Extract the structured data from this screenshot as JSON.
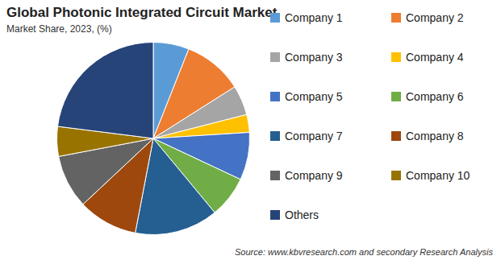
{
  "chart_data": {
    "type": "pie",
    "title": "Global Photonic Integrated Circuit Market",
    "subtitle": "Market Share, 2023, (%)",
    "source": "Source: www.kbvresearch.com and secondary Research Analysis",
    "categories": [
      "Company 1",
      "Company 2",
      "Company 3",
      "Company 4",
      "Company 5",
      "Company 6",
      "Company 7",
      "Company 8",
      "Company 9",
      "Company 10",
      "Others"
    ],
    "values": [
      6,
      10,
      5,
      3,
      8,
      7,
      14,
      10,
      9,
      5,
      23
    ],
    "colors": [
      "#5b9bd5",
      "#ed7d31",
      "#a5a5a5",
      "#ffc000",
      "#4472c4",
      "#70ad47",
      "#255e91",
      "#9e480e",
      "#636363",
      "#997300",
      "#264478"
    ],
    "legend": "right"
  }
}
